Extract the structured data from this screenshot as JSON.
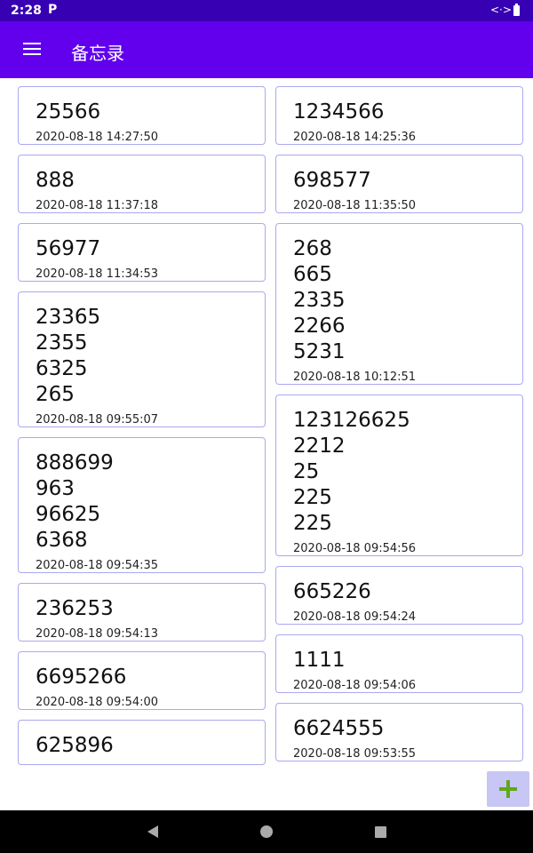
{
  "status_bar": {
    "time": "2:28",
    "app_icon": "P",
    "code_icon": "<·>"
  },
  "app_bar": {
    "title": "备忘录",
    "menu_icon": "hamburger-menu-icon"
  },
  "left_column": [
    {
      "content": "25566",
      "date": "2020-08-18 14:27:50"
    },
    {
      "content": "888",
      "date": "2020-08-18 11:37:18"
    },
    {
      "content": "56977",
      "date": "2020-08-18 11:34:53"
    },
    {
      "content": "23365\n2355\n6325\n265",
      "date": "2020-08-18 09:55:07"
    },
    {
      "content": "888699\n963\n96625\n6368",
      "date": "2020-08-18 09:54:35"
    },
    {
      "content": "236253",
      "date": "2020-08-18 09:54:13"
    },
    {
      "content": "6695266",
      "date": "2020-08-18 09:54:00"
    },
    {
      "content": "625896",
      "date": ""
    }
  ],
  "right_column": [
    {
      "content": "1234566",
      "date": "2020-08-18 14:25:36"
    },
    {
      "content": "698577",
      "date": "2020-08-18 11:35:50"
    },
    {
      "content": "268\n665\n2335\n2266\n5231",
      "date": "2020-08-18 10:12:51"
    },
    {
      "content": "123126625\n2212\n25\n225\n225",
      "date": "2020-08-18 09:54:56"
    },
    {
      "content": "665226",
      "date": "2020-08-18 09:54:24"
    },
    {
      "content": "1111",
      "date": "2020-08-18 09:54:06"
    },
    {
      "content": "6624555",
      "date": "2020-08-18 09:53:55"
    }
  ],
  "fab": {
    "icon": "plus-icon",
    "color": "#5fa915"
  },
  "colors": {
    "status_bar": "#3700b3",
    "app_bar": "#6200ee",
    "card_border": "#aaa9f0"
  }
}
